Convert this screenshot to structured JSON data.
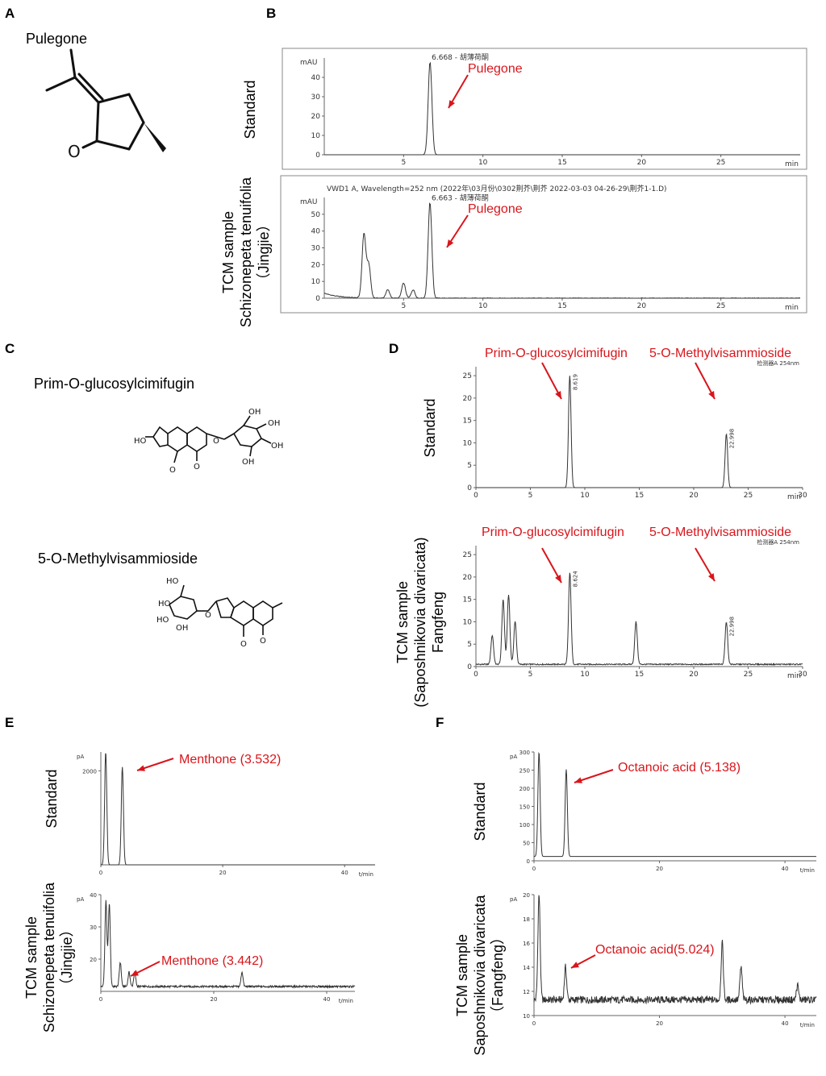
{
  "panels": {
    "A": {
      "letter": "A",
      "compound": "Pulegone"
    },
    "B": {
      "letter": "B"
    },
    "C": {
      "letter": "C",
      "compound1": "Prim-O-glucosylcimifugin",
      "compound2": "5-O-Methylvisammioside"
    },
    "D": {
      "letter": "D"
    },
    "E": {
      "letter": "E"
    },
    "F": {
      "letter": "F"
    }
  },
  "row_labels": {
    "standard": "Standard",
    "tcm_jingjie": [
      "TCM sample",
      "Schizonepeta tenuifolia",
      "（Jingjie）"
    ],
    "tcm_fangfeng_d": [
      "TCM sample",
      "(Saposhnikovia divaricata)",
      "Fangfeng"
    ],
    "tcm_jingjie_e": [
      "TCM sample",
      "Schizonepeta tenuifolia",
      "（Jingjie）"
    ],
    "tcm_fangfeng_f": [
      "TCM sample",
      "Saposhnikovia divaricata",
      "（Fangfeng）"
    ]
  },
  "colors": {
    "annotation": "#d9151b",
    "trace": "#333333"
  },
  "chart_data": [
    {
      "id": "B-standard",
      "type": "line",
      "ylabel": "mAU",
      "xlabel": "min",
      "xlim": [
        0,
        30
      ],
      "ylim": [
        0,
        50
      ],
      "xticks": [
        5,
        10,
        15,
        20,
        25
      ],
      "yticks": [
        0,
        10,
        20,
        30,
        40
      ],
      "peaks": [
        {
          "x": 6.668,
          "y": 48,
          "label": "6.668 - 胡薄荷酮"
        }
      ],
      "annotation": "Pulegone"
    },
    {
      "id": "B-sample",
      "type": "line",
      "ylabel": "mAU",
      "xlabel": "min",
      "xlim": [
        0,
        30
      ],
      "ylim": [
        0,
        60
      ],
      "header": "VWD1 A, Wavelength=252 nm (2022年\\03月份\\0302荆芥\\荆芥 2022-03-03 04-26-29\\荆芥1-1.D)",
      "xticks": [
        5,
        10,
        15,
        20,
        25
      ],
      "yticks": [
        0,
        10,
        20,
        30,
        40,
        50
      ],
      "peaks": [
        {
          "x": 2.5,
          "y": 38
        },
        {
          "x": 2.8,
          "y": 20
        },
        {
          "x": 4.0,
          "y": 5
        },
        {
          "x": 5.0,
          "y": 9
        },
        {
          "x": 5.6,
          "y": 5
        },
        {
          "x": 6.663,
          "y": 57,
          "label": "6.663 - 胡薄荷酮"
        }
      ],
      "annotation": "Pulegone"
    },
    {
      "id": "D-standard",
      "type": "line",
      "xlabel": "min",
      "xlim": [
        0,
        30
      ],
      "ylim": [
        0,
        27
      ],
      "header": "检测器A 254nm",
      "xticks": [
        0,
        5,
        10,
        15,
        20,
        25,
        30
      ],
      "yticks": [
        0,
        5,
        10,
        15,
        20,
        25
      ],
      "peaks": [
        {
          "x": 8.619,
          "y": 25,
          "label": "8.619"
        },
        {
          "x": 22.998,
          "y": 12,
          "label": "22.998"
        }
      ],
      "annotations": [
        "Prim-O-glucosylcimifugin",
        "5-O-Methylvisammioside"
      ]
    },
    {
      "id": "D-sample",
      "type": "line",
      "xlabel": "min",
      "xlim": [
        0,
        30
      ],
      "ylim": [
        0,
        27
      ],
      "header": "检测器A 254nm",
      "xticks": [
        0,
        5,
        10,
        15,
        20,
        25,
        30
      ],
      "yticks": [
        0,
        5,
        10,
        15,
        20,
        25
      ],
      "peaks": [
        {
          "x": 1.5,
          "y": 7
        },
        {
          "x": 2.5,
          "y": 15
        },
        {
          "x": 3.0,
          "y": 16
        },
        {
          "x": 3.6,
          "y": 10
        },
        {
          "x": 8.624,
          "y": 21,
          "label": "8.624"
        },
        {
          "x": 14.7,
          "y": 10
        },
        {
          "x": 22.998,
          "y": 10,
          "label": "22.998"
        }
      ],
      "annotations": [
        "Prim-O-glucosylcimifugin",
        "5-O-Methylvisammioside"
      ]
    },
    {
      "id": "E-standard",
      "type": "line",
      "ylabel": "pA",
      "xlabel": "t/min",
      "xlim": [
        0,
        45
      ],
      "ylim": [
        0,
        2400
      ],
      "xticks": [
        0,
        20,
        40
      ],
      "yticks": [
        2000
      ],
      "peaks": [
        {
          "x": 0.8,
          "y": 2400
        },
        {
          "x": 3.532,
          "y": 2080
        }
      ],
      "annotation": "Menthone (3.532)"
    },
    {
      "id": "E-sample",
      "type": "line",
      "ylabel": "pA",
      "xlabel": "t/min",
      "xlim": [
        0,
        45
      ],
      "ylim": [
        10,
        40
      ],
      "xticks": [
        0,
        20,
        40
      ],
      "yticks": [
        20,
        30,
        40
      ],
      "peaks": [
        {
          "x": 0.9,
          "y": 38
        },
        {
          "x": 1.5,
          "y": 37
        },
        {
          "x": 3.442,
          "y": 19
        },
        {
          "x": 5,
          "y": 16
        },
        {
          "x": 6,
          "y": 16
        },
        {
          "x": 25,
          "y": 16
        }
      ],
      "annotation": "Menthone (3.442)"
    },
    {
      "id": "F-standard",
      "type": "line",
      "ylabel": "pA",
      "xlabel": "t/min",
      "xlim": [
        0,
        45
      ],
      "ylim": [
        0,
        300
      ],
      "xticks": [
        0,
        20,
        40
      ],
      "yticks": [
        0,
        50,
        100,
        150,
        200,
        250,
        300
      ],
      "peaks": [
        {
          "x": 0.8,
          "y": 300
        },
        {
          "x": 5.138,
          "y": 252
        }
      ],
      "annotation": "Octanoic acid (5.138)"
    },
    {
      "id": "F-sample",
      "type": "line",
      "ylabel": "pA",
      "xlabel": "t/min",
      "xlim": [
        0,
        45
      ],
      "ylim": [
        10,
        20
      ],
      "xticks": [
        0,
        20,
        40
      ],
      "yticks": [
        10,
        12,
        14,
        16,
        18,
        20
      ],
      "peaks": [
        {
          "x": 0.8,
          "y": 20
        },
        {
          "x": 5.024,
          "y": 14
        },
        {
          "x": 30,
          "y": 16
        },
        {
          "x": 33,
          "y": 14
        },
        {
          "x": 42,
          "y": 12.5
        }
      ],
      "annotation": "Octanoic acid(5.024)"
    }
  ]
}
